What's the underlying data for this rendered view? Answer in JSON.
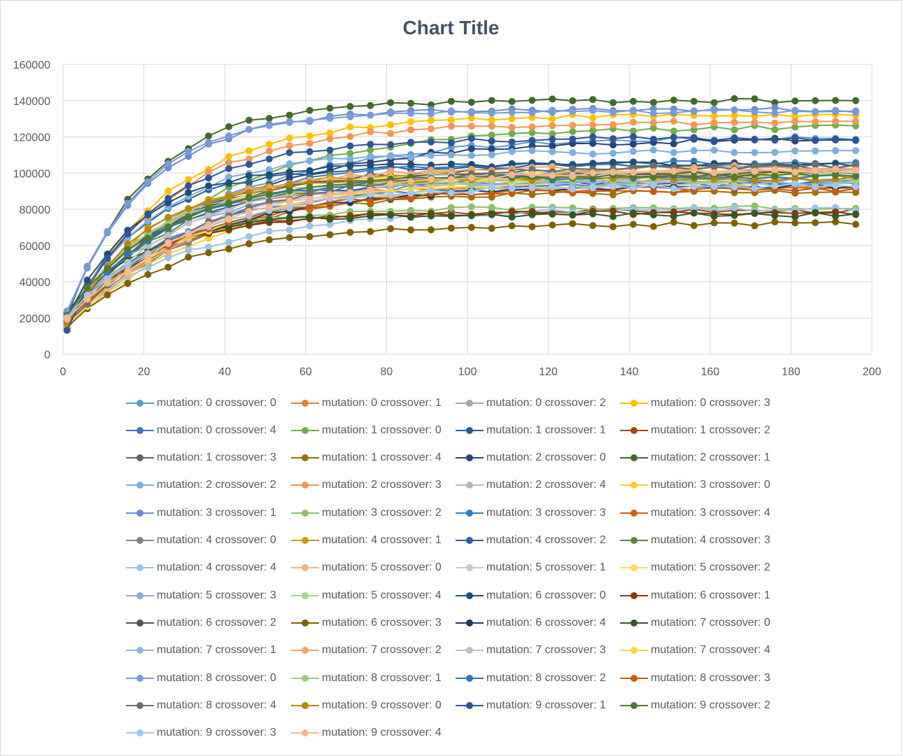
{
  "chart_data": {
    "type": "line",
    "title": "Chart Title",
    "xlabel": "",
    "ylabel": "",
    "xlim": [
      0,
      200
    ],
    "ylim": [
      0,
      160000
    ],
    "x_ticks": [
      0,
      20,
      40,
      60,
      80,
      100,
      120,
      140,
      160,
      180,
      200
    ],
    "y_ticks": [
      0,
      20000,
      40000,
      60000,
      80000,
      100000,
      120000,
      140000,
      160000
    ],
    "grid": true,
    "legend_position": "bottom",
    "x": [
      1,
      6,
      11,
      16,
      21,
      26,
      31,
      36,
      41,
      46,
      51,
      56,
      61,
      66,
      71,
      76,
      81,
      86,
      91,
      96,
      101,
      106,
      111,
      116,
      121,
      126,
      131,
      136,
      141,
      146,
      151,
      156,
      161,
      166,
      171,
      176,
      181,
      186,
      191,
      196
    ],
    "series": [
      {
        "name": "mutation: 0 crossover: 0",
        "color": "#5b9bd5",
        "final": 120000
      },
      {
        "name": "mutation: 0 crossover: 1",
        "color": "#ed7d31",
        "final": 92000
      },
      {
        "name": "mutation: 0 crossover: 2",
        "color": "#a5a5a5",
        "final": 100000
      },
      {
        "name": "mutation: 0 crossover: 3",
        "color": "#ffc000",
        "final": 132000
      },
      {
        "name": "mutation: 0 crossover: 4",
        "color": "#4472c4",
        "final": 94000
      },
      {
        "name": "mutation: 1 crossover: 0",
        "color": "#70ad47",
        "final": 126000
      },
      {
        "name": "mutation: 1 crossover: 1",
        "color": "#255e91",
        "final": 104000
      },
      {
        "name": "mutation: 1 crossover: 2",
        "color": "#9e480e",
        "final": 79000
      },
      {
        "name": "mutation: 1 crossover: 3",
        "color": "#636363",
        "final": 103000
      },
      {
        "name": "mutation: 1 crossover: 4",
        "color": "#997300",
        "final": 90000
      },
      {
        "name": "mutation: 2 crossover: 0",
        "color": "#264478",
        "final": 119000
      },
      {
        "name": "mutation: 2 crossover: 1",
        "color": "#43682b",
        "final": 140000
      },
      {
        "name": "mutation: 2 crossover: 2",
        "color": "#7cafdd",
        "final": 112000
      },
      {
        "name": "mutation: 2 crossover: 3",
        "color": "#f1975a",
        "final": 128000
      },
      {
        "name": "mutation: 2 crossover: 4",
        "color": "#b7b7b7",
        "final": 99000
      },
      {
        "name": "mutation: 3 crossover: 0",
        "color": "#ffcd33",
        "final": 98000
      },
      {
        "name": "mutation: 3 crossover: 1",
        "color": "#698ed0",
        "final": 135000
      },
      {
        "name": "mutation: 3 crossover: 2",
        "color": "#8cc168",
        "final": 81000
      },
      {
        "name": "mutation: 3 crossover: 3",
        "color": "#327dc2",
        "final": 106000
      },
      {
        "name": "mutation: 3 crossover: 4",
        "color": "#d26012",
        "final": 92000
      },
      {
        "name": "mutation: 4 crossover: 0",
        "color": "#848484",
        "final": 102000
      },
      {
        "name": "mutation: 4 crossover: 1",
        "color": "#cc9a00",
        "final": 100000
      },
      {
        "name": "mutation: 4 crossover: 2",
        "color": "#335aa1",
        "final": 95000
      },
      {
        "name": "mutation: 4 crossover: 3",
        "color": "#5a8a39",
        "final": 98000
      },
      {
        "name": "mutation: 4 crossover: 4",
        "color": "#9dc3e6",
        "final": 80000
      },
      {
        "name": "mutation: 5 crossover: 0",
        "color": "#f4b183",
        "final": 102000
      },
      {
        "name": "mutation: 5 crossover: 1",
        "color": "#c9c9c9",
        "final": 97000
      },
      {
        "name": "mutation: 5 crossover: 2",
        "color": "#ffd966",
        "final": 101000
      },
      {
        "name": "mutation: 5 crossover: 3",
        "color": "#8faadc",
        "final": 96000
      },
      {
        "name": "mutation: 5 crossover: 4",
        "color": "#a9d18e",
        "final": 94000
      },
      {
        "name": "mutation: 6 crossover: 0",
        "color": "#1f4e79",
        "final": 105000
      },
      {
        "name": "mutation: 6 crossover: 1",
        "color": "#843c0c",
        "final": 78000
      },
      {
        "name": "mutation: 6 crossover: 2",
        "color": "#525252",
        "final": 100000
      },
      {
        "name": "mutation: 6 crossover: 3",
        "color": "#7f6000",
        "final": 72000
      },
      {
        "name": "mutation: 6 crossover: 4",
        "color": "#203864",
        "final": 93000
      },
      {
        "name": "mutation: 7 crossover: 0",
        "color": "#385723",
        "final": 77000
      },
      {
        "name": "mutation: 7 crossover: 1",
        "color": "#8fb4e3",
        "final": 95000
      },
      {
        "name": "mutation: 7 crossover: 2",
        "color": "#f4a46c",
        "final": 103000
      },
      {
        "name": "mutation: 7 crossover: 3",
        "color": "#c0c0c0",
        "final": 101000
      },
      {
        "name": "mutation: 7 crossover: 4",
        "color": "#ffd44d",
        "final": 99000
      },
      {
        "name": "mutation: 8 crossover: 0",
        "color": "#7b9ad8",
        "final": 134000
      },
      {
        "name": "mutation: 8 crossover: 1",
        "color": "#9ccc7c",
        "final": 96000
      },
      {
        "name": "mutation: 8 crossover: 2",
        "color": "#2e75b6",
        "final": 98000
      },
      {
        "name": "mutation: 8 crossover: 3",
        "color": "#c55a11",
        "final": 91000
      },
      {
        "name": "mutation: 8 crossover: 4",
        "color": "#6f6f6f",
        "final": 104000
      },
      {
        "name": "mutation: 9 crossover: 0",
        "color": "#b8860b",
        "final": 97000
      },
      {
        "name": "mutation: 9 crossover: 1",
        "color": "#2f5597",
        "final": 119000
      },
      {
        "name": "mutation: 9 crossover: 2",
        "color": "#4e7a32",
        "final": 99000
      },
      {
        "name": "mutation: 9 crossover: 3",
        "color": "#a4c8ec",
        "final": 93000
      },
      {
        "name": "mutation: 9 crossover: 4",
        "color": "#f8b88b",
        "final": 102000
      }
    ]
  }
}
